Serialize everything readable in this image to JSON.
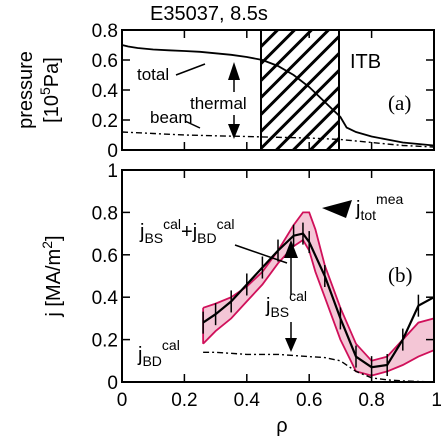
{
  "chart_data": [
    {
      "type": "line",
      "panel": "(a)",
      "title": "E35037, 8.5s",
      "xlabel": "",
      "ylabel_line1": "pressure",
      "ylabel_line2": "[10",
      "ylabel_sup": "5",
      "ylabel_tail": "Pa]",
      "xlim": [
        0,
        1
      ],
      "ylim": [
        0,
        0.8
      ],
      "yticks": [
        "0",
        "0.2",
        "0.4",
        "0.6",
        "0.8"
      ],
      "itb_region": [
        0.46,
        0.7
      ],
      "itb_label": "ITB",
      "annotations": {
        "total": "total",
        "thermal": "thermal",
        "beam": "beam"
      },
      "series": [
        {
          "name": "total",
          "style": "solid",
          "x": [
            0.0,
            0.02,
            0.05,
            0.1,
            0.15,
            0.2,
            0.25,
            0.3,
            0.35,
            0.4,
            0.45,
            0.5,
            0.55,
            0.6,
            0.65,
            0.7,
            0.72,
            0.75,
            0.8,
            0.85,
            0.9,
            0.95,
            1.0
          ],
          "y": [
            0.7,
            0.69,
            0.68,
            0.67,
            0.665,
            0.66,
            0.655,
            0.645,
            0.635,
            0.62,
            0.6,
            0.56,
            0.5,
            0.42,
            0.32,
            0.22,
            0.15,
            0.12,
            0.09,
            0.07,
            0.05,
            0.04,
            0.03
          ]
        },
        {
          "name": "beam",
          "style": "dashdot",
          "x": [
            0.0,
            0.1,
            0.2,
            0.3,
            0.4,
            0.5,
            0.6,
            0.7,
            0.8,
            0.9,
            1.0
          ],
          "y": [
            0.12,
            0.11,
            0.1,
            0.095,
            0.09,
            0.085,
            0.08,
            0.07,
            0.05,
            0.03,
            0.02
          ]
        }
      ]
    },
    {
      "type": "line",
      "panel": "(b)",
      "xlabel": "ρ",
      "ylabel": "j [MA/m",
      "ylabel_sup": "2",
      "ylabel_tail": "]",
      "xlim": [
        0,
        1
      ],
      "ylim": [
        0,
        1
      ],
      "xticks": [
        "0",
        "0.2",
        "0.4",
        "0.6",
        "0.8",
        "1"
      ],
      "yticks": [
        "0",
        "0.2",
        "0.4",
        "0.6",
        "0.8",
        "1"
      ],
      "annotations": {
        "bs_bd_main1": "j",
        "bs_bd_sub1": "BS",
        "bs_bd_sup1": "cal",
        "bs_bd_plus": "+j",
        "bs_bd_sub2": "BD",
        "bs_bd_sup2": "cal",
        "tot_main": "j",
        "tot_sub": "tot",
        "tot_sup": "mea",
        "bs_main": "j",
        "bs_sub": "BS",
        "bs_sup": "cal",
        "bd_main": "j",
        "bd_sub": "BD",
        "bd_sup": "cal"
      },
      "series": [
        {
          "name": "j_tot_mea_upper",
          "style": "band",
          "x": [
            0.26,
            0.3,
            0.35,
            0.4,
            0.45,
            0.5,
            0.55,
            0.58,
            0.6,
            0.62,
            0.65,
            0.7,
            0.75,
            0.8,
            0.85,
            0.9,
            0.95,
            1.0
          ],
          "y": [
            0.35,
            0.37,
            0.4,
            0.45,
            0.52,
            0.62,
            0.74,
            0.8,
            0.8,
            0.72,
            0.55,
            0.35,
            0.18,
            0.1,
            0.12,
            0.2,
            0.28,
            0.3
          ]
        },
        {
          "name": "j_tot_mea_lower",
          "style": "band",
          "x": [
            0.26,
            0.3,
            0.35,
            0.4,
            0.45,
            0.5,
            0.55,
            0.58,
            0.6,
            0.62,
            0.65,
            0.7,
            0.75,
            0.8,
            0.85,
            0.9,
            0.95,
            1.0
          ],
          "y": [
            0.18,
            0.24,
            0.3,
            0.38,
            0.46,
            0.56,
            0.64,
            0.67,
            0.62,
            0.52,
            0.4,
            0.2,
            0.05,
            0.03,
            0.05,
            0.08,
            0.12,
            0.15
          ]
        },
        {
          "name": "j_BS_cal+j_BD_cal",
          "style": "solid-errorbar",
          "x": [
            0.26,
            0.3,
            0.35,
            0.4,
            0.45,
            0.5,
            0.55,
            0.58,
            0.6,
            0.65,
            0.7,
            0.75,
            0.8,
            0.85,
            0.9,
            0.95,
            1.0
          ],
          "y": [
            0.28,
            0.32,
            0.38,
            0.46,
            0.54,
            0.62,
            0.69,
            0.7,
            0.66,
            0.5,
            0.3,
            0.12,
            0.07,
            0.08,
            0.2,
            0.36,
            0.4
          ]
        },
        {
          "name": "j_BD_cal",
          "style": "dashdot",
          "x": [
            0.26,
            0.3,
            0.4,
            0.5,
            0.6,
            0.65,
            0.7,
            0.75,
            0.8,
            0.85,
            0.9,
            1.0
          ],
          "y": [
            0.14,
            0.14,
            0.13,
            0.13,
            0.12,
            0.115,
            0.1,
            0.05,
            0.02,
            0.01,
            0.005,
            0.0
          ]
        }
      ]
    }
  ]
}
